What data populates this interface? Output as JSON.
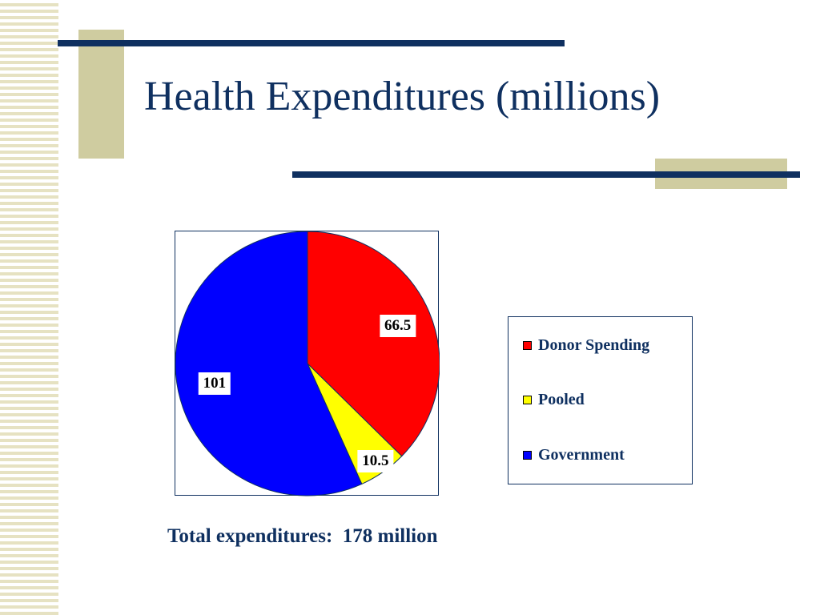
{
  "slide": {
    "title": "Health Expenditures (millions)",
    "total_text": "Total expenditures:  178 million"
  },
  "colors": {
    "accent_navy": "#0f3060",
    "accent_tan": "#cfcca0"
  },
  "chart_data": {
    "type": "pie",
    "title": "",
    "legend_position": "right",
    "slices": [
      {
        "label": "Donor Spending",
        "value": 66.5,
        "value_label": "66.5",
        "color": "#ff0000"
      },
      {
        "label": "Pooled",
        "value": 10.5,
        "value_label": "10.5",
        "color": "#ffff00"
      },
      {
        "label": "Government",
        "value": 101,
        "value_label": "101",
        "color": "#0000ff"
      }
    ]
  }
}
